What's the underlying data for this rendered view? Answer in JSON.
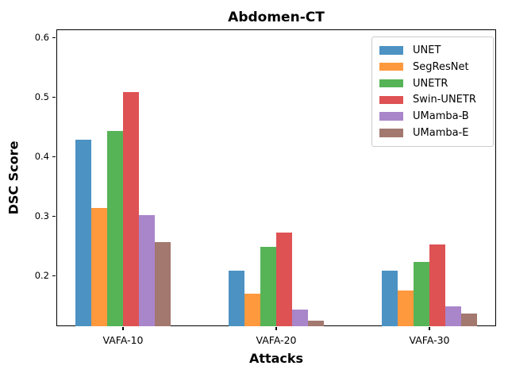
{
  "chart_data": {
    "type": "bar",
    "title": "Abdomen-CT",
    "xlabel": "Attacks",
    "ylabel": "DSC Score",
    "categories": [
      "VAFA-10",
      "VAFA-20",
      "VAFA-30"
    ],
    "series": [
      {
        "name": "UNET",
        "color": "#4C92C3",
        "values": [
          0.429,
          0.208,
          0.208
        ]
      },
      {
        "name": "SegResNet",
        "color": "#FF993E",
        "values": [
          0.314,
          0.17,
          0.175
        ]
      },
      {
        "name": "UNETR",
        "color": "#56B356",
        "values": [
          0.443,
          0.249,
          0.223
        ]
      },
      {
        "name": "Swin-UNETR",
        "color": "#DE5253",
        "values": [
          0.509,
          0.273,
          0.253
        ]
      },
      {
        "name": "UMamba-B",
        "color": "#A985CA",
        "values": [
          0.302,
          0.143,
          0.148
        ]
      },
      {
        "name": "UMamba-E",
        "color": "#A3786F",
        "values": [
          0.256,
          0.124,
          0.136
        ]
      }
    ],
    "yticks": [
      0.2,
      0.3,
      0.4,
      0.5,
      0.6
    ],
    "ylim": [
      0.115,
      0.614
    ],
    "grid": false,
    "legend_position": "upper right"
  }
}
